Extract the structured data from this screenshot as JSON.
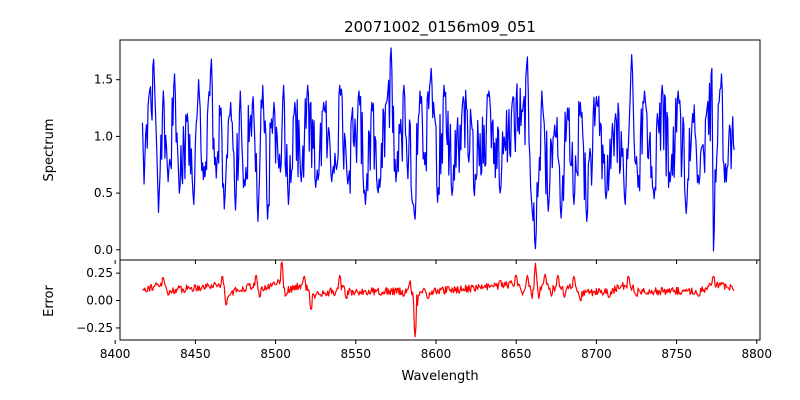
{
  "figure": {
    "title": "20071002_0156m09_051",
    "x_label": "Wavelength",
    "top_y_label": "Spectrum",
    "bottom_y_label": "Error"
  },
  "chart_data": [
    {
      "type": "line",
      "ylabel": "Spectrum",
      "xlim": [
        8403,
        8802
      ],
      "ylim": [
        -0.09,
        1.85
      ],
      "x_ticks": [
        8400,
        8450,
        8500,
        8550,
        8600,
        8650,
        8700,
        8750,
        8800
      ],
      "y_ticks": [
        0.0,
        0.5,
        1.0,
        1.5
      ],
      "y_tick_labels": [
        "0.0",
        "0.5",
        "1.0",
        "1.5"
      ],
      "x_range": [
        8417,
        8786
      ],
      "series": [
        {
          "color": "#0000ff",
          "anchors": [
            [
              8417,
              1.12
            ],
            [
              8418,
              0.58
            ],
            [
              8419,
              1.02
            ],
            [
              8421,
              1.35
            ],
            [
              8424,
              1.68
            ],
            [
              8426,
              0.85
            ],
            [
              8427,
              0.33
            ],
            [
              8430,
              1.4
            ],
            [
              8433,
              0.6
            ],
            [
              8437,
              1.55
            ],
            [
              8440,
              0.5
            ],
            [
              8445,
              1.2
            ],
            [
              8449,
              0.4
            ],
            [
              8452,
              1.5
            ],
            [
              8455,
              0.62
            ],
            [
              8458,
              1.3
            ],
            [
              8460,
              1.68
            ],
            [
              8462,
              0.75
            ],
            [
              8466,
              1.25
            ],
            [
              8468,
              0.36
            ],
            [
              8472,
              1.3
            ],
            [
              8475,
              0.35
            ],
            [
              8478,
              1.4
            ],
            [
              8480,
              0.55
            ],
            [
              8486,
              1.35
            ],
            [
              8489,
              0.25
            ],
            [
              8492,
              1.45
            ],
            [
              8495,
              0.27
            ],
            [
              8499,
              1.3
            ],
            [
              8502,
              0.72
            ],
            [
              8505,
              1.45
            ],
            [
              8508,
              0.4
            ],
            [
              8512,
              1.3
            ],
            [
              8516,
              0.6
            ],
            [
              8520,
              1.45
            ],
            [
              8525,
              0.55
            ],
            [
              8530,
              1.3
            ],
            [
              8535,
              0.6
            ],
            [
              8540,
              1.45
            ],
            [
              8545,
              0.58
            ],
            [
              8552,
              1.4
            ],
            [
              8556,
              0.4
            ],
            [
              8560,
              1.3
            ],
            [
              8565,
              0.55
            ],
            [
              8570,
              1.4
            ],
            [
              8572,
              1.78
            ],
            [
              8575,
              0.6
            ],
            [
              8580,
              1.45
            ],
            [
              8585,
              0.45
            ],
            [
              8587,
              0.27
            ],
            [
              8590,
              1.4
            ],
            [
              8593,
              0.75
            ],
            [
              8597,
              1.6
            ],
            [
              8601,
              0.42
            ],
            [
              8605,
              1.45
            ],
            [
              8610,
              0.48
            ],
            [
              8617,
              1.35
            ],
            [
              8625,
              0.62
            ],
            [
              8633,
              1.4
            ],
            [
              8640,
              0.5
            ],
            [
              8648,
              1.35
            ],
            [
              8654,
              1.22
            ],
            [
              8657,
              1.7
            ],
            [
              8659,
              0.55
            ],
            [
              8660,
              0.34
            ],
            [
              8662,
              0.01
            ],
            [
              8664,
              0.62
            ],
            [
              8666,
              1.4
            ],
            [
              8670,
              0.34
            ],
            [
              8674,
              1.1
            ],
            [
              8678,
              0.28
            ],
            [
              8682,
              1.25
            ],
            [
              8686,
              0.4
            ],
            [
              8690,
              1.3
            ],
            [
              8694,
              0.25
            ],
            [
              8700,
              1.35
            ],
            [
              8706,
              0.45
            ],
            [
              8712,
              1.2
            ],
            [
              8718,
              0.4
            ],
            [
              8722,
              1.72
            ],
            [
              8726,
              0.55
            ],
            [
              8730,
              1.4
            ],
            [
              8736,
              0.45
            ],
            [
              8741,
              1.45
            ],
            [
              8746,
              0.6
            ],
            [
              8751,
              1.4
            ],
            [
              8756,
              0.32
            ],
            [
              8760,
              1.2
            ],
            [
              8764,
              0.58
            ],
            [
              8769,
              1.25
            ],
            [
              8772,
              1.6
            ],
            [
              8773,
              -0.01
            ],
            [
              8775,
              0.8
            ],
            [
              8778,
              1.55
            ],
            [
              8781,
              0.6
            ],
            [
              8783,
              1.1
            ],
            [
              8786,
              0.88
            ]
          ]
        }
      ]
    },
    {
      "type": "line",
      "ylabel": "Error",
      "xlim": [
        8403,
        8802
      ],
      "ylim": [
        -0.36,
        0.37
      ],
      "x_ticks": [
        8400,
        8450,
        8500,
        8550,
        8600,
        8650,
        8700,
        8750,
        8800
      ],
      "x_tick_labels": [
        "8400",
        "8450",
        "8500",
        "8550",
        "8600",
        "8650",
        "8700",
        "8750",
        "8800"
      ],
      "y_ticks": [
        -0.25,
        0.0,
        0.25
      ],
      "y_tick_labels": [
        "−0.25",
        "0.00",
        "0.25"
      ],
      "x_range": [
        8417,
        8786
      ],
      "series": [
        {
          "color": "#ff0000",
          "baseline": 0.11,
          "anchors": [
            [
              8417,
              0.1
            ],
            [
              8430,
              0.21
            ],
            [
              8433,
              0.05
            ],
            [
              8467,
              0.22
            ],
            [
              8469,
              -0.04
            ],
            [
              8488,
              0.23
            ],
            [
              8490,
              0.03
            ],
            [
              8504,
              0.35
            ],
            [
              8506,
              0.04
            ],
            [
              8518,
              0.22
            ],
            [
              8522,
              -0.08
            ],
            [
              8537,
              0.05
            ],
            [
              8540,
              0.23
            ],
            [
              8544,
              0.02
            ],
            [
              8580,
              0.04
            ],
            [
              8584,
              0.18
            ],
            [
              8587,
              -0.33
            ],
            [
              8589,
              0.05
            ],
            [
              8595,
              0.02
            ],
            [
              8640,
              0.18
            ],
            [
              8650,
              0.23
            ],
            [
              8654,
              0.05
            ],
            [
              8657,
              0.23
            ],
            [
              8660,
              0.02
            ],
            [
              8662,
              0.34
            ],
            [
              8664,
              0.02
            ],
            [
              8668,
              0.24
            ],
            [
              8672,
              0.04
            ],
            [
              8676,
              0.23
            ],
            [
              8680,
              0.03
            ],
            [
              8686,
              0.22
            ],
            [
              8690,
              0.0
            ],
            [
              8708,
              0.03
            ],
            [
              8720,
              0.22
            ],
            [
              8725,
              0.04
            ],
            [
              8764,
              0.04
            ],
            [
              8773,
              0.22
            ],
            [
              8786,
              0.09
            ]
          ]
        }
      ]
    }
  ]
}
